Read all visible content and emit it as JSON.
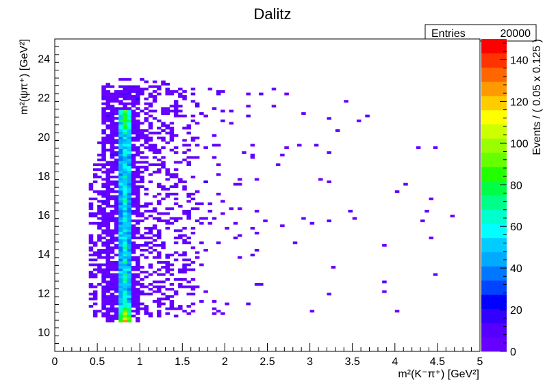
{
  "chart_data": {
    "type": "heatmap",
    "title": "Dalitz",
    "xlabel": "m²(K⁻π⁺) [GeV²]",
    "ylabel": "m²(ψπ⁺) [GeV²]",
    "zlabel": "Events / ( 0.05 x 0.125 )",
    "xlim": [
      0,
      5
    ],
    "ylim": [
      9,
      25
    ],
    "zlim": [
      0,
      150
    ],
    "x_bin_width": 0.05,
    "y_bin_width": 0.125,
    "x_ticks": [
      "0",
      "0.5",
      "1",
      "1.5",
      "2",
      "2.5",
      "3",
      "3.5",
      "4",
      "4.5",
      "5"
    ],
    "y_ticks": [
      "10",
      "12",
      "14",
      "16",
      "18",
      "20",
      "22",
      "24"
    ],
    "z_ticks": [
      "0",
      "20",
      "40",
      "60",
      "80",
      "100",
      "120",
      "140"
    ],
    "grid": false,
    "colormap": [
      "#6600ff",
      "#5500ff",
      "#3300ff",
      "#0000ff",
      "#0044ff",
      "#0077ff",
      "#00aaff",
      "#00ccff",
      "#00ffff",
      "#00ffcc",
      "#00ff88",
      "#00ff44",
      "#22ff00",
      "#66ff00",
      "#99ff00",
      "#ccff00",
      "#ffff00",
      "#ffcc00",
      "#ff9900",
      "#ff6600",
      "#ff3300",
      "#ff0000"
    ],
    "band": {
      "x_range": [
        0.75,
        0.85
      ],
      "y_range": [
        10.4,
        21.3
      ],
      "description": "narrow vertical K*(892) band with highest density"
    },
    "populated_region": {
      "x_range": [
        0.4,
        4.7
      ],
      "y_range": [
        10.4,
        22.9
      ]
    }
  },
  "stats": {
    "entries_label": "Entries",
    "entries_value": "20000"
  }
}
